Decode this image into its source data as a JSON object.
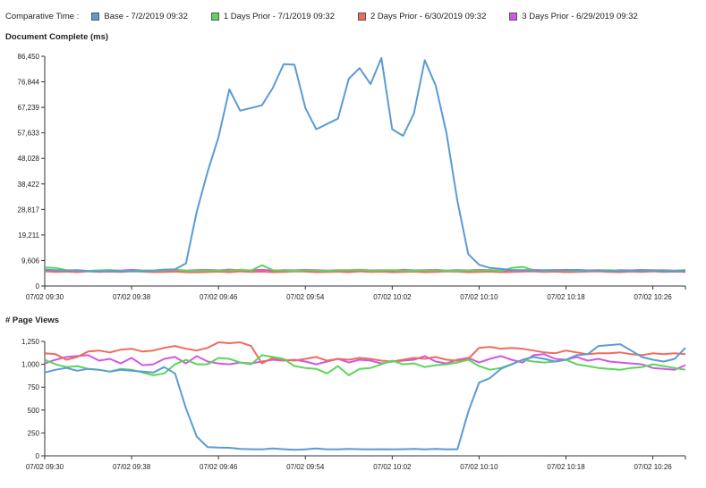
{
  "legend": {
    "label": "Comparative Time :",
    "items": [
      {
        "label": "Base - 7/2/2019 09:32",
        "color": "#5b9bd5"
      },
      {
        "label": "1 Days Prior - 7/1/2019 09:32",
        "color": "#5bd55b"
      },
      {
        "label": "2 Days Prior - 6/30/2019 09:32",
        "color": "#ef6b5e"
      },
      {
        "label": "3 Days Prior - 6/29/2019 09:32",
        "color": "#d158e0"
      }
    ]
  },
  "chart_data": [
    {
      "type": "line",
      "title": "Document Complete (ms)",
      "xlabel": "",
      "ylabel": "",
      "ylim": [
        0,
        86450
      ],
      "yticks": [
        "86,450",
        "76,844",
        "67,239",
        "57,633",
        "48,028",
        "38,422",
        "28,817",
        "19,211",
        "9,606",
        "0"
      ],
      "xticks": [
        "07/02 09:30",
        "07/02 09:38",
        "07/02 09:46",
        "07/02 09:54",
        "07/02 10:02",
        "07/02 10:10",
        "07/02 10:18",
        "07/02 10:26"
      ],
      "x": [
        "09:30",
        "09:31",
        "09:32",
        "09:33",
        "09:34",
        "09:35",
        "09:36",
        "09:37",
        "09:38",
        "09:39",
        "09:40",
        "09:41",
        "09:42",
        "09:43",
        "09:44",
        "09:45",
        "09:46",
        "09:47",
        "09:48",
        "09:49",
        "09:50",
        "09:51",
        "09:52",
        "09:53",
        "09:54",
        "09:55",
        "09:56",
        "09:57",
        "09:58",
        "09:59",
        "10:00",
        "10:01",
        "10:02",
        "10:03",
        "10:04",
        "10:05",
        "10:06",
        "10:07",
        "10:08",
        "10:09",
        "10:10",
        "10:11",
        "10:12",
        "10:13",
        "10:14",
        "10:15",
        "10:16",
        "10:17",
        "10:18",
        "10:19",
        "10:20",
        "10:21",
        "10:22",
        "10:23",
        "10:24",
        "10:25",
        "10:26",
        "10:27",
        "10:28",
        "10:29"
      ],
      "grid": false,
      "legend": "top",
      "series": [
        {
          "name": "Base - 7/2/2019 09:32",
          "color": "#5b9bd5",
          "values": [
            6200,
            6000,
            5800,
            5900,
            5600,
            5500,
            5700,
            5600,
            5700,
            5500,
            5800,
            6200,
            6300,
            8500,
            28000,
            43000,
            56000,
            74000,
            66000,
            67000,
            68000,
            74500,
            83500,
            83300,
            67000,
            59000,
            61000,
            63000,
            78000,
            82000,
            76000,
            85800,
            59000,
            56500,
            65000,
            85000,
            75500,
            57500,
            32000,
            12000,
            8000,
            6800,
            6500,
            6000,
            6000,
            5800,
            6000,
            6000,
            6100,
            6000,
            5800,
            5900,
            5700,
            5600,
            5800,
            5700,
            5900,
            5600,
            5500,
            5800
          ]
        },
        {
          "name": "1 Days Prior - 7/1/2019 09:32",
          "color": "#5bd55b",
          "values": [
            7000,
            6800,
            6000,
            5800,
            5700,
            5900,
            6000,
            5700,
            5800,
            5900,
            5700,
            6000,
            6200,
            5800,
            5600,
            6000,
            5800,
            5900,
            6100,
            5800,
            7800,
            6000,
            5800,
            5700,
            6000,
            5800,
            5700,
            5900,
            6000,
            6100,
            5800,
            5900,
            6000,
            5800,
            5700,
            5900,
            6000,
            5800,
            5700,
            5800,
            5900,
            6000,
            5700,
            6800,
            7200,
            6000,
            5800,
            5900,
            6000,
            5700,
            5800,
            5900,
            6000,
            5800,
            5700,
            5900,
            6000,
            5800,
            5700,
            6000
          ]
        },
        {
          "name": "2 Days Prior - 6/30/2019 09:32",
          "color": "#ef6b5e",
          "values": [
            5500,
            5300,
            5400,
            5200,
            5500,
            5300,
            5400,
            5300,
            5500,
            5400,
            5200,
            5300,
            5400,
            5200,
            5100,
            5300,
            5400,
            5200,
            5500,
            5300,
            5400,
            5200,
            5300,
            5500,
            5400,
            5200,
            5300,
            5400,
            5200,
            5500,
            5300,
            5400,
            5200,
            5300,
            5400,
            5200,
            5300,
            5500,
            5400,
            5200,
            5300,
            5400,
            5200,
            5300,
            5400,
            5500,
            5300,
            5400,
            5200,
            5300,
            5400,
            5500,
            5300,
            5200,
            5400,
            5300,
            5500,
            5300,
            5400,
            5300
          ]
        },
        {
          "name": "3 Days Prior - 6/29/2019 09:32",
          "color": "#d158e0",
          "values": [
            6000,
            5800,
            5900,
            6000,
            5700,
            5900,
            6000,
            5800,
            6100,
            5900,
            5800,
            6000,
            5900,
            5800,
            6000,
            6100,
            5900,
            6200,
            6000,
            5900,
            6100,
            5800,
            6000,
            5900,
            6100,
            6000,
            5800,
            6000,
            5900,
            6100,
            5900,
            6000,
            5800,
            6100,
            5900,
            6000,
            6100,
            5800,
            6000,
            5900,
            6100,
            6000,
            5800,
            6000,
            5900,
            6100,
            5900,
            6000,
            5800,
            6100,
            5900,
            6000,
            5800,
            6000,
            5900,
            6100,
            5900,
            6000,
            5800,
            6000
          ]
        }
      ]
    },
    {
      "type": "line",
      "title": "# Page Views",
      "xlabel": "",
      "ylabel": "",
      "ylim": [
        0,
        1250
      ],
      "yticks": [
        "1,250",
        "1,000",
        "750",
        "500",
        "250",
        "0"
      ],
      "xticks": [
        "07/02 09:30",
        "07/02 09:38",
        "07/02 09:46",
        "07/02 09:54",
        "07/02 10:02",
        "07/02 10:10",
        "07/02 10:18",
        "07/02 10:26"
      ],
      "x": [
        "09:30",
        "09:31",
        "09:32",
        "09:33",
        "09:34",
        "09:35",
        "09:36",
        "09:37",
        "09:38",
        "09:39",
        "09:40",
        "09:41",
        "09:42",
        "09:43",
        "09:44",
        "09:45",
        "09:46",
        "09:47",
        "09:48",
        "09:49",
        "09:50",
        "09:51",
        "09:52",
        "09:53",
        "09:54",
        "09:55",
        "09:56",
        "09:57",
        "09:58",
        "09:59",
        "10:00",
        "10:01",
        "10:02",
        "10:03",
        "10:04",
        "10:05",
        "10:06",
        "10:07",
        "10:08",
        "10:09",
        "10:10",
        "10:11",
        "10:12",
        "10:13",
        "10:14",
        "10:15",
        "10:16",
        "10:17",
        "10:18",
        "10:19",
        "10:20",
        "10:21",
        "10:22",
        "10:23",
        "10:24",
        "10:25",
        "10:26",
        "10:27",
        "10:28",
        "10:29"
      ],
      "grid": false,
      "legend": "top",
      "series": [
        {
          "name": "Base - 7/2/2019 09:32",
          "color": "#5b9bd5",
          "values": [
            910,
            940,
            960,
            930,
            950,
            940,
            920,
            940,
            930,
            920,
            910,
            970,
            900,
            520,
            210,
            95,
            90,
            88,
            75,
            72,
            70,
            80,
            72,
            65,
            70,
            80,
            70,
            70,
            75,
            72,
            70,
            72,
            70,
            72,
            75,
            70,
            75,
            70,
            72,
            480,
            800,
            850,
            950,
            1000,
            1050,
            1080,
            1060,
            1030,
            1050,
            1100,
            1110,
            1200,
            1210,
            1220,
            1150,
            1080,
            1050,
            1030,
            1060,
            1180
          ]
        },
        {
          "name": "1 Days Prior - 7/1/2019 09:32",
          "color": "#5bd55b",
          "values": [
            1050,
            1000,
            970,
            980,
            950,
            940,
            920,
            950,
            940,
            910,
            880,
            900,
            1000,
            1050,
            1000,
            1000,
            1070,
            1060,
            1020,
            1000,
            1100,
            1080,
            1060,
            980,
            960,
            950,
            900,
            980,
            880,
            950,
            960,
            1000,
            1040,
            1000,
            1010,
            970,
            990,
            1000,
            1020,
            1050,
            980,
            940,
            960,
            1000,
            1050,
            1030,
            1020,
            1030,
            1050,
            1000,
            980,
            960,
            950,
            940,
            960,
            970,
            1000,
            980,
            960,
            940
          ]
        },
        {
          "name": "2 Days Prior - 6/30/2019 09:32",
          "color": "#ef6b5e",
          "values": [
            1120,
            1110,
            1050,
            1080,
            1140,
            1150,
            1130,
            1160,
            1170,
            1140,
            1150,
            1180,
            1200,
            1170,
            1150,
            1180,
            1240,
            1230,
            1240,
            1200,
            1010,
            1070,
            1050,
            1040,
            1060,
            1080,
            1040,
            1060,
            1050,
            1070,
            1060,
            1040,
            1030,
            1050,
            1070,
            1060,
            1080,
            1050,
            1040,
            1060,
            1180,
            1190,
            1170,
            1180,
            1170,
            1150,
            1130,
            1120,
            1150,
            1130,
            1110,
            1120,
            1120,
            1130,
            1110,
            1100,
            1120,
            1110,
            1120,
            1110
          ]
        },
        {
          "name": "3 Days Prior - 6/29/2019 09:32",
          "color": "#d158e0",
          "values": [
            1010,
            1050,
            1080,
            1090,
            1100,
            1040,
            1060,
            1010,
            1070,
            990,
            1000,
            1060,
            1080,
            1010,
            1090,
            1030,
            1010,
            1000,
            1020,
            1010,
            1030,
            1050,
            1040,
            1050,
            1030,
            1000,
            1030,
            1060,
            1020,
            1050,
            1040,
            1010,
            1030,
            1040,
            1050,
            1090,
            1030,
            1010,
            1050,
            1070,
            1020,
            1060,
            1090,
            1050,
            1020,
            1100,
            1110,
            1060,
            1050,
            1080,
            1040,
            1060,
            1030,
            1020,
            1010,
            1000,
            960,
            950,
            940,
            990
          ]
        }
      ]
    }
  ]
}
